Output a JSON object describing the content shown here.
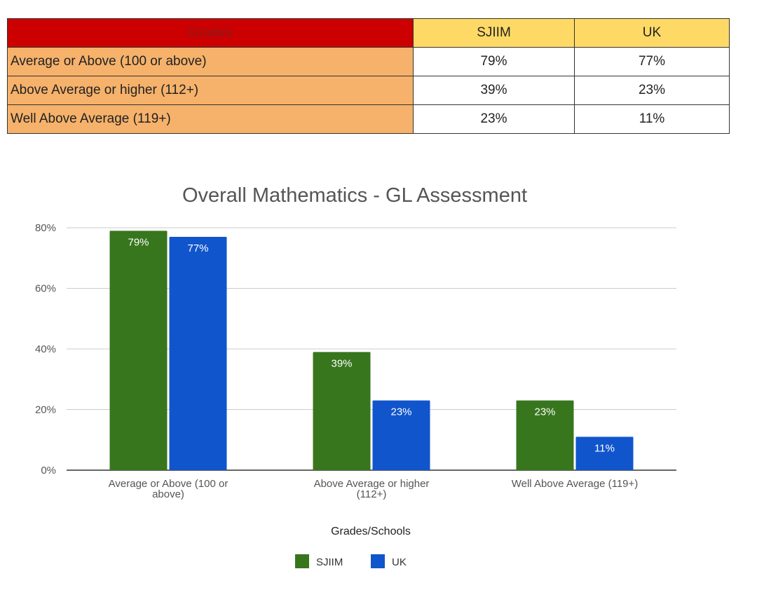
{
  "table": {
    "headers": [
      "Grades",
      "SJIIM",
      "UK"
    ],
    "rows": [
      {
        "label": "Average or Above (100 or above)",
        "sjiim": "79%",
        "uk": "77%"
      },
      {
        "label": "Above Average or higher (112+)",
        "sjiim": "39%",
        "uk": "23%"
      },
      {
        "label": "Well Above Average (119+)",
        "sjiim": "23%",
        "uk": "11%"
      }
    ],
    "colors": {
      "header_grades": "#cc0000",
      "header_other": "#ffd966",
      "label_cells": "#f6b26b"
    }
  },
  "chart_data": {
    "type": "bar",
    "title": "Overall Mathematics - GL Assessment",
    "xlabel": "Grades/Schools",
    "ylabel": "",
    "categories": [
      [
        "Average or Above (100 or",
        "above)"
      ],
      [
        "Above Average or higher",
        "(112+)"
      ],
      [
        "Well Above Average (119+)"
      ]
    ],
    "series": [
      {
        "name": "SJIIM",
        "values": [
          79,
          39,
          23
        ],
        "labels": [
          "79%",
          "39%",
          "23%"
        ],
        "color": "#38761d"
      },
      {
        "name": "UK",
        "values": [
          77,
          23,
          11
        ],
        "labels": [
          "77%",
          "23%",
          "11%"
        ],
        "color": "#1155cc"
      }
    ],
    "ylim": [
      0,
      80
    ],
    "yticks": [
      0,
      20,
      40,
      60,
      80
    ],
    "ytick_labels": [
      "0%",
      "20%",
      "40%",
      "60%",
      "80%"
    ],
    "grid": true,
    "legend": "bottom"
  }
}
